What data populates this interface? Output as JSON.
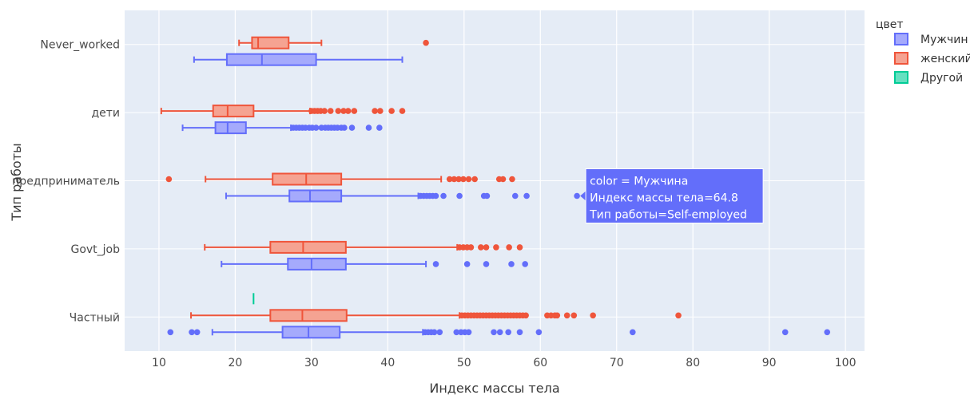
{
  "chart_data": {
    "type": "box",
    "orientation": "horizontal",
    "xlabel": "Индекс массы тела",
    "ylabel": "Тип работы",
    "xlim": [
      5.5,
      102.5
    ],
    "x_ticks": [
      10,
      20,
      30,
      40,
      50,
      60,
      70,
      80,
      90,
      100
    ],
    "categories": [
      "Never_worked",
      "дети",
      "Self-employed",
      "Govt_job",
      "Частный"
    ],
    "category_labels": [
      "Never_worked",
      "дети",
      "предприниматель",
      "Govt_job",
      "Частный"
    ],
    "grid": true,
    "legend": {
      "title": "цвет",
      "position": "right",
      "entries": [
        {
          "label": "Мужчин",
          "color": "#636efa"
        },
        {
          "label": "женский",
          "color": "#ef553b"
        },
        {
          "label": "Другой",
          "color": "#00cc96"
        }
      ]
    },
    "series": [
      {
        "name": "Мужчина",
        "legend_label": "Мужчин",
        "color": "#636efa",
        "fill": "#a5aafc",
        "boxes": [
          {
            "category": "Never_worked",
            "min": 14.6,
            "q1": 18.9,
            "median": 23.5,
            "q3": 30.6,
            "max": 41.9,
            "outliers": []
          },
          {
            "category": "дети",
            "min": 13.1,
            "q1": 17.4,
            "median": 19.0,
            "q3": 21.4,
            "max": 27.3,
            "outliers": [
              27.6,
              28.0,
              28.4,
              28.8,
              29.2,
              29.7,
              30.1,
              30.6,
              31.3,
              31.8,
              32.2,
              32.6,
              33.0,
              33.4,
              33.9,
              34.3,
              35.3,
              37.5,
              38.9
            ]
          },
          {
            "category": "Self-employed",
            "min": 18.8,
            "q1": 27.1,
            "median": 29.8,
            "q3": 33.9,
            "max": 44.0,
            "outliers": [
              44.3,
              44.7,
              45.1,
              45.5,
              45.9,
              46.3,
              47.3,
              49.4,
              52.6,
              53.0,
              56.7,
              58.2,
              64.8
            ]
          },
          {
            "category": "Govt_job",
            "min": 18.2,
            "q1": 26.9,
            "median": 30.0,
            "q3": 34.5,
            "max": 45.0,
            "outliers": [
              46.3,
              50.4,
              52.9,
              56.2,
              58.0
            ]
          },
          {
            "category": "Частный",
            "min": 17.0,
            "q1": 26.2,
            "median": 29.6,
            "q3": 33.7,
            "max": 44.6,
            "outliers": [
              11.5,
              14.3,
              15.0,
              44.9,
              45.3,
              45.7,
              46.1,
              46.8,
              49.0,
              49.6,
              50.1,
              50.6,
              53.9,
              54.7,
              55.8,
              57.3,
              59.8,
              72.1,
              92.1,
              97.6
            ]
          }
        ]
      },
      {
        "name": "женский",
        "legend_label": "женский",
        "color": "#ef553b",
        "fill": "#f5a392",
        "boxes": [
          {
            "category": "Never_worked",
            "min": 20.5,
            "q1": 22.2,
            "median": 23.0,
            "q3": 27.0,
            "max": 31.3,
            "outliers": [
              45.0
            ]
          },
          {
            "category": "дети",
            "min": 10.3,
            "q1": 17.1,
            "median": 19.0,
            "q3": 22.4,
            "max": 29.8,
            "outliers": [
              30.0,
              30.4,
              30.8,
              31.2,
              31.7,
              32.5,
              33.5,
              34.2,
              34.8,
              35.6,
              38.3,
              39.0,
              40.5,
              41.9
            ]
          },
          {
            "category": "Self-employed",
            "min": 16.1,
            "q1": 24.9,
            "median": 29.3,
            "q3": 33.9,
            "max": 47.0,
            "outliers": [
              11.3,
              48.1,
              48.7,
              49.3,
              49.9,
              50.6,
              51.4,
              54.6,
              55.1,
              56.3
            ]
          },
          {
            "category": "Govt_job",
            "min": 16.0,
            "q1": 24.6,
            "median": 28.9,
            "q3": 34.5,
            "max": 49.1,
            "outliers": [
              49.4,
              49.9,
              50.4,
              50.9,
              52.2,
              52.9,
              54.2,
              55.9,
              57.3
            ]
          },
          {
            "category": "Частный",
            "min": 14.2,
            "q1": 24.6,
            "median": 28.8,
            "q3": 34.6,
            "max": 49.4,
            "outliers": [
              49.7,
              50.1,
              50.5,
              50.9,
              51.3,
              51.7,
              52.1,
              52.5,
              52.9,
              53.3,
              53.7,
              54.1,
              54.5,
              54.9,
              55.3,
              55.7,
              56.1,
              56.5,
              56.9,
              57.3,
              57.7,
              58.1,
              60.9,
              61.4,
              61.9,
              62.2,
              63.5,
              64.4,
              66.9,
              78.1
            ]
          }
        ]
      },
      {
        "name": "Другой",
        "legend_label": "Другой",
        "color": "#00cc96",
        "fill": "#66e0c0",
        "boxes": [
          {
            "category": "Частный",
            "min": 22.4,
            "q1": 22.4,
            "median": 22.4,
            "q3": 22.4,
            "max": 22.4,
            "outliers": []
          }
        ]
      }
    ],
    "tooltip": {
      "category": "Self-employed",
      "series": "Мужчина",
      "x": 64.8,
      "lines": [
        "color = Мужчина",
        "Индекс массы тела=64.8",
        "Тип работы=Self-employed"
      ]
    }
  }
}
